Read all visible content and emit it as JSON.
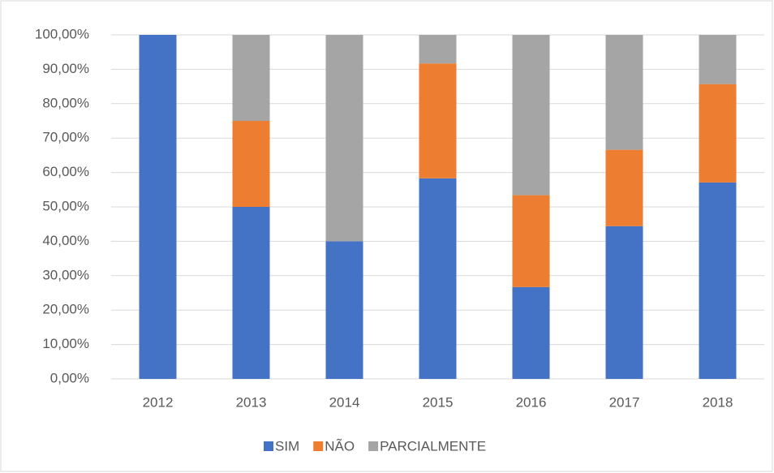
{
  "chart_data": {
    "type": "bar",
    "stacked": true,
    "categories": [
      "2012",
      "2013",
      "2014",
      "2015",
      "2016",
      "2017",
      "2018"
    ],
    "series": [
      {
        "name": "SIM",
        "color": "#4472c4",
        "values": [
          100,
          50,
          40,
          58.3,
          26.7,
          44.4,
          57.1
        ]
      },
      {
        "name": "NÃO",
        "color": "#ed7d31",
        "values": [
          0,
          25,
          0,
          33.4,
          26.7,
          22.2,
          28.6
        ]
      },
      {
        "name": "PARCIALMENTE",
        "color": "#a5a5a5",
        "values": [
          0,
          25,
          60,
          8.3,
          46.6,
          33.4,
          14.3
        ]
      }
    ],
    "ylim": [
      0,
      100
    ],
    "yticks": [
      {
        "value": 0,
        "label": "0,00%"
      },
      {
        "value": 10,
        "label": "10,00%"
      },
      {
        "value": 20,
        "label": "20,00%"
      },
      {
        "value": 30,
        "label": "30,00%"
      },
      {
        "value": 40,
        "label": "40,00%"
      },
      {
        "value": 50,
        "label": "50,00%"
      },
      {
        "value": 60,
        "label": "60,00%"
      },
      {
        "value": 70,
        "label": "70,00%"
      },
      {
        "value": 80,
        "label": "80,00%"
      },
      {
        "value": 90,
        "label": "90,00%"
      },
      {
        "value": 100,
        "label": "100,00%"
      }
    ],
    "grid": true,
    "legend": "bottom"
  }
}
